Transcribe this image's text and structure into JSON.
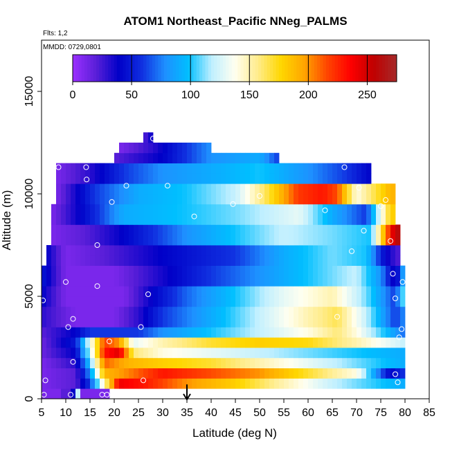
{
  "chart_data": {
    "type": "heatmap",
    "title": "ATOM1 Northeast_Pacific NNeg_PALMS",
    "subtitle_flights": "Flts: 1,2",
    "subtitle_dates": "MMDD: 0729,0801",
    "xlabel": "Latitude (deg N)",
    "ylabel": "Altitude (m)",
    "xlim": [
      5,
      85
    ],
    "ylim": [
      0,
      17500
    ],
    "x_ticks": [
      "5",
      "10",
      "15",
      "20",
      "25",
      "30",
      "35",
      "40",
      "45",
      "50",
      "55",
      "60",
      "65",
      "70",
      "75",
      "80",
      "85"
    ],
    "y_ticks": [
      "0",
      "5000",
      "10000",
      "15000"
    ],
    "colorbar": {
      "range": [
        0,
        275
      ],
      "tick_labels": [
        "0",
        "50",
        "100",
        "150",
        "200",
        "250"
      ],
      "colors": [
        "#9b30ff",
        "#5a1fd8",
        "#0000c8",
        "#1030e0",
        "#1e90ff",
        "#00bfff",
        "#bfefff",
        "#fffff0",
        "#ffec8b",
        "#ffd700",
        "#ffa500",
        "#ff4500",
        "#ff0000",
        "#c00000",
        "#a52a2a"
      ]
    },
    "cell_size": {
      "lat": 1,
      "alt": 500
    },
    "profile_bands": [
      {
        "alt": [
          0,
          500
        ],
        "lat": [
          5,
          19
        ],
        "values": [
          10,
          10,
          10,
          10,
          20,
          20,
          40,
          120,
          10,
          10,
          10,
          10,
          10,
          10
        ]
      },
      {
        "alt": [
          500,
          1000
        ],
        "lat": [
          5,
          80
        ],
        "stops": [
          [
            5,
            10
          ],
          [
            12,
            20
          ],
          [
            15,
            60
          ],
          [
            18,
            150
          ],
          [
            21,
            240
          ],
          [
            26,
            230
          ],
          [
            35,
            200
          ],
          [
            45,
            180
          ],
          [
            55,
            150
          ],
          [
            65,
            120
          ],
          [
            75,
            100
          ],
          [
            80,
            90
          ]
        ]
      },
      {
        "alt": [
          1000,
          1500
        ],
        "lat": [
          5,
          80
        ],
        "stops": [
          [
            5,
            10
          ],
          [
            12,
            20
          ],
          [
            15,
            80
          ],
          [
            18,
            190
          ],
          [
            22,
            200
          ],
          [
            30,
            230
          ],
          [
            40,
            215
          ],
          [
            50,
            200
          ],
          [
            60,
            170
          ],
          [
            70,
            140
          ],
          [
            77,
            40
          ],
          [
            80,
            60
          ]
        ]
      },
      {
        "alt": [
          1500,
          2000
        ],
        "lat": [
          5,
          80
        ],
        "stops": [
          [
            5,
            10
          ],
          [
            12,
            30
          ],
          [
            15,
            100
          ],
          [
            18,
            210
          ],
          [
            23,
            190
          ],
          [
            30,
            180
          ],
          [
            40,
            170
          ],
          [
            50,
            150
          ],
          [
            60,
            130
          ],
          [
            70,
            110
          ],
          [
            80,
            90
          ]
        ]
      },
      {
        "alt": [
          2000,
          2500
        ],
        "lat": [
          5,
          80
        ],
        "stops": [
          [
            5,
            15
          ],
          [
            12,
            40
          ],
          [
            15,
            120
          ],
          [
            18,
            230
          ],
          [
            21,
            245
          ],
          [
            24,
            160
          ],
          [
            30,
            140
          ],
          [
            40,
            130
          ],
          [
            50,
            120
          ],
          [
            60,
            110
          ],
          [
            70,
            100
          ],
          [
            80,
            90
          ]
        ]
      },
      {
        "alt": [
          2500,
          3000
        ],
        "lat": [
          5,
          80
        ],
        "stops": [
          [
            5,
            15
          ],
          [
            12,
            50
          ],
          [
            15,
            130
          ],
          [
            18,
            220
          ],
          [
            21,
            200
          ],
          [
            24,
            130
          ],
          [
            30,
            150
          ],
          [
            40,
            170
          ],
          [
            50,
            180
          ],
          [
            60,
            175
          ],
          [
            70,
            150
          ],
          [
            80,
            120
          ]
        ]
      },
      {
        "alt": [
          3000,
          3500
        ],
        "lat": [
          5,
          80
        ],
        "stops": [
          [
            5,
            20
          ],
          [
            12,
            40
          ],
          [
            15,
            60
          ],
          [
            20,
            60
          ],
          [
            25,
            60
          ],
          [
            30,
            80
          ],
          [
            40,
            100
          ],
          [
            50,
            120
          ],
          [
            60,
            140
          ],
          [
            66,
            160
          ],
          [
            70,
            140
          ],
          [
            80,
            70
          ]
        ]
      },
      {
        "alt": [
          3500,
          4500
        ],
        "lat": [
          5,
          80
        ],
        "stops": [
          [
            5,
            30
          ],
          [
            12,
            10
          ],
          [
            20,
            10
          ],
          [
            25,
            30
          ],
          [
            30,
            60
          ],
          [
            40,
            90
          ],
          [
            50,
            120
          ],
          [
            60,
            150
          ],
          [
            66,
            165
          ],
          [
            72,
            120
          ],
          [
            78,
            60
          ],
          [
            80,
            80
          ]
        ]
      },
      {
        "alt": [
          4500,
          5500
        ],
        "lat": [
          5,
          80
        ],
        "stops": [
          [
            5,
            40
          ],
          [
            10,
            10
          ],
          [
            22,
            10
          ],
          [
            28,
            40
          ],
          [
            35,
            70
          ],
          [
            45,
            100
          ],
          [
            55,
            130
          ],
          [
            65,
            150
          ],
          [
            72,
            110
          ],
          [
            78,
            60
          ],
          [
            80,
            120
          ]
        ]
      },
      {
        "alt": [
          5500,
          6500
        ],
        "lat": [
          5,
          80
        ],
        "stops": [
          [
            5,
            50
          ],
          [
            10,
            10
          ],
          [
            20,
            10
          ],
          [
            28,
            30
          ],
          [
            40,
            60
          ],
          [
            50,
            80
          ],
          [
            60,
            100
          ],
          [
            70,
            120
          ],
          [
            75,
            80
          ],
          [
            78,
            30
          ],
          [
            80,
            100
          ]
        ]
      },
      {
        "alt": [
          6500,
          7500
        ],
        "lat": [
          6,
          79
        ],
        "stops": [
          [
            6,
            40
          ],
          [
            10,
            10
          ],
          [
            18,
            20
          ],
          [
            30,
            40
          ],
          [
            45,
            60
          ],
          [
            55,
            90
          ],
          [
            65,
            110
          ],
          [
            72,
            100
          ],
          [
            76,
            40
          ],
          [
            79,
            20
          ]
        ]
      },
      {
        "alt": [
          7500,
          8500
        ],
        "lat": [
          7,
          79
        ],
        "stops": [
          [
            7,
            10
          ],
          [
            14,
            20
          ],
          [
            22,
            40
          ],
          [
            35,
            80
          ],
          [
            45,
            100
          ],
          [
            55,
            120
          ],
          [
            65,
            110
          ],
          [
            73,
            100
          ],
          [
            76,
            200
          ],
          [
            78,
            260
          ]
        ]
      },
      {
        "alt": [
          8500,
          9500
        ],
        "lat": [
          7,
          78
        ],
        "stops": [
          [
            7,
            10
          ],
          [
            15,
            50
          ],
          [
            22,
            90
          ],
          [
            35,
            100
          ],
          [
            45,
            110
          ],
          [
            52,
            120
          ],
          [
            58,
            130
          ],
          [
            65,
            90
          ],
          [
            72,
            60
          ],
          [
            77,
            180
          ]
        ]
      },
      {
        "alt": [
          9500,
          10500
        ],
        "lat": [
          8,
          78
        ],
        "stops": [
          [
            8,
            10
          ],
          [
            16,
            60
          ],
          [
            25,
            90
          ],
          [
            35,
            100
          ],
          [
            45,
            120
          ],
          [
            52,
            170
          ],
          [
            58,
            220
          ],
          [
            63,
            230
          ],
          [
            66,
            215
          ],
          [
            70,
            140
          ],
          [
            77,
            190
          ]
        ]
      },
      {
        "alt": [
          10500,
          11500
        ],
        "lat": [
          8,
          73
        ],
        "stops": [
          [
            8,
            10
          ],
          [
            15,
            30
          ],
          [
            22,
            60
          ],
          [
            30,
            80
          ],
          [
            40,
            90
          ],
          [
            50,
            100
          ],
          [
            60,
            80
          ],
          [
            68,
            60
          ],
          [
            73,
            40
          ]
        ]
      },
      {
        "alt": [
          11500,
          12000
        ],
        "lat": [
          20,
          54
        ],
        "stops": [
          [
            20,
            20
          ],
          [
            30,
            40
          ],
          [
            40,
            80
          ],
          [
            50,
            90
          ],
          [
            54,
            60
          ]
        ]
      },
      {
        "alt": [
          12000,
          12500
        ],
        "lat": [
          21,
          40
        ],
        "stops": [
          [
            21,
            10
          ],
          [
            28,
            30
          ],
          [
            35,
            60
          ],
          [
            40,
            80
          ]
        ]
      },
      {
        "alt": [
          12500,
          13000
        ],
        "lat": [
          26,
          28
        ],
        "stops": [
          [
            26,
            20
          ],
          [
            28,
            40
          ]
        ]
      }
    ],
    "observations": [
      {
        "lat": 5.5,
        "alt": 200
      },
      {
        "lat": 5.8,
        "alt": 900
      },
      {
        "lat": 5.3,
        "alt": 4800
      },
      {
        "lat": 8.5,
        "alt": 11300
      },
      {
        "lat": 10.0,
        "alt": 5700
      },
      {
        "lat": 10.5,
        "alt": 3500
      },
      {
        "lat": 11.0,
        "alt": 200
      },
      {
        "lat": 11.5,
        "alt": 1800
      },
      {
        "lat": 11.5,
        "alt": 3900
      },
      {
        "lat": 14.2,
        "alt": 11300
      },
      {
        "lat": 14.3,
        "alt": 10700
      },
      {
        "lat": 16.5,
        "alt": 7500
      },
      {
        "lat": 16.5,
        "alt": 5500
      },
      {
        "lat": 17.5,
        "alt": 200
      },
      {
        "lat": 18.5,
        "alt": 200
      },
      {
        "lat": 19.0,
        "alt": 2800
      },
      {
        "lat": 19.5,
        "alt": 9600
      },
      {
        "lat": 22.5,
        "alt": 10400
      },
      {
        "lat": 25.5,
        "alt": 3500
      },
      {
        "lat": 26.0,
        "alt": 900
      },
      {
        "lat": 27.0,
        "alt": 5100
      },
      {
        "lat": 28.0,
        "alt": 12700
      },
      {
        "lat": 31.0,
        "alt": 10400
      },
      {
        "lat": 36.5,
        "alt": 8900
      },
      {
        "lat": 44.5,
        "alt": 9500
      },
      {
        "lat": 50.0,
        "alt": 9900
      },
      {
        "lat": 63.5,
        "alt": 9200
      },
      {
        "lat": 66.0,
        "alt": 4000
      },
      {
        "lat": 67.5,
        "alt": 11300
      },
      {
        "lat": 69.0,
        "alt": 7200
      },
      {
        "lat": 70.5,
        "alt": 10300
      },
      {
        "lat": 71.5,
        "alt": 8200
      },
      {
        "lat": 75.0,
        "alt": 9400
      },
      {
        "lat": 76.0,
        "alt": 9700
      },
      {
        "lat": 77.0,
        "alt": 7700
      },
      {
        "lat": 77.5,
        "alt": 6100
      },
      {
        "lat": 78.0,
        "alt": 4900
      },
      {
        "lat": 78.0,
        "alt": 1200
      },
      {
        "lat": 78.5,
        "alt": 800
      },
      {
        "lat": 78.8,
        "alt": 3000
      },
      {
        "lat": 79.3,
        "alt": 3400
      },
      {
        "lat": 79.5,
        "alt": 5700
      }
    ],
    "marker": {
      "lat": 35,
      "alt_top": 700,
      "alt_bottom": 0,
      "type": "arrow-down"
    }
  }
}
